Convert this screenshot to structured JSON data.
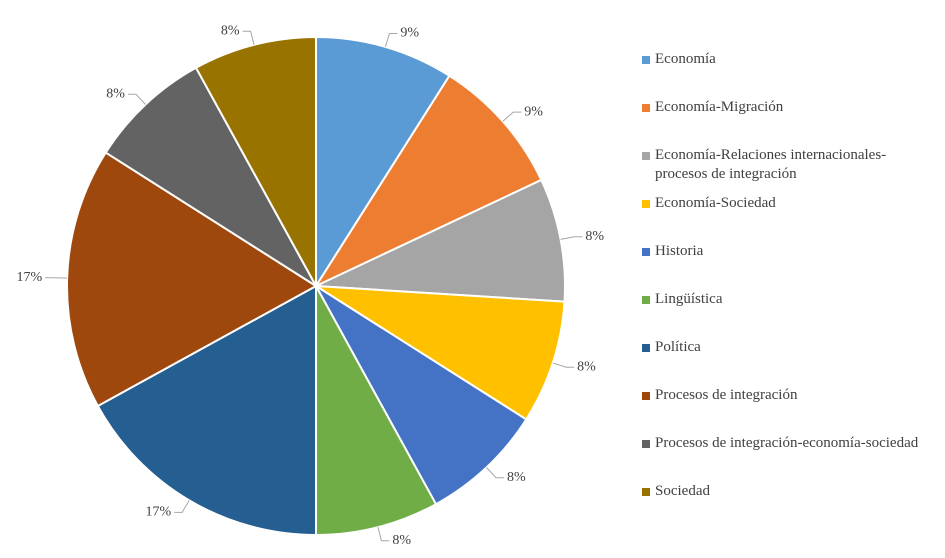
{
  "chart_data": {
    "type": "pie",
    "categories": [
      "Economía",
      "Economía-Migración",
      "Economía-Relaciones internacionales-procesos de integración",
      "Economía-Sociedad",
      "Historia",
      "Lingüística",
      "Política",
      "Procesos de integración",
      "Procesos de integración-economía-sociedad",
      "Sociedad"
    ],
    "values": [
      9,
      9,
      8,
      8,
      8,
      8,
      17,
      17,
      8,
      8
    ],
    "value_labels": [
      "9%",
      "9%",
      "8%",
      "8%",
      "8%",
      "8%",
      "17%",
      "17%",
      "8%",
      "8%"
    ],
    "colors": [
      "#5b9bd5",
      "#ed7d31",
      "#a5a5a5",
      "#ffc000",
      "#4472c4",
      "#70ad47",
      "#255e91",
      "#9e480e",
      "#636363",
      "#997300"
    ],
    "legend": "right"
  }
}
